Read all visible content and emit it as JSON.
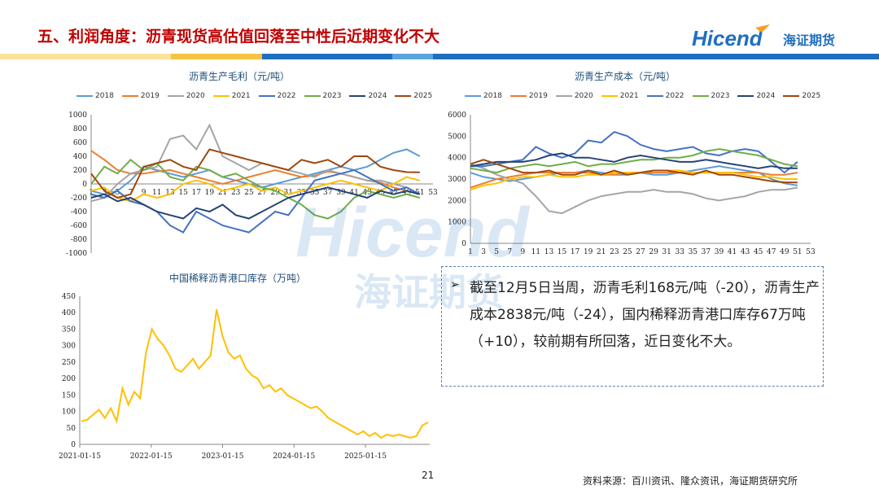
{
  "header": {
    "title": "五、利润角度：沥青现货高估值回落至中性后近期变化不大",
    "logo_text": "Hicend",
    "logo_cn": "海证期货"
  },
  "colors": {
    "title": "#c00000",
    "bar_yellow": "#f6c344",
    "bar_blue": "#1f6fc0",
    "series": {
      "2018": "#5b9bd5",
      "2019": "#ed7d31",
      "2020": "#a5a5a5",
      "2021": "#ffc000",
      "2022": "#4472c4",
      "2023": "#70ad47",
      "2024": "#264478",
      "2025": "#9e480e"
    },
    "inventory": "#ffc000"
  },
  "legend_years": [
    "2018",
    "2019",
    "2020",
    "2021",
    "2022",
    "2023",
    "2024",
    "2025"
  ],
  "note": {
    "bullet": "➢",
    "text": "截至12月5日当周，沥青毛利168元/吨（-20），沥青生产成本2838元/吨（-24），国内稀释沥青港口库存67万吨（+10），较前期有所回落，近日变化不大。"
  },
  "watermark": {
    "latin": "Hicend",
    "cn": "海证期货"
  },
  "footer": {
    "page": "21",
    "source": "资料来源：百川资讯、隆众资讯，海证期货研究所"
  },
  "chart_data": [
    {
      "type": "line",
      "title": "沥青生产毛利（元/吨）",
      "x": [
        1,
        3,
        5,
        7,
        9,
        11,
        13,
        15,
        17,
        19,
        21,
        23,
        25,
        27,
        29,
        31,
        33,
        35,
        37,
        39,
        41,
        43,
        45,
        47,
        49,
        51,
        53
      ],
      "ylim": [
        -1000,
        1000
      ],
      "yticks": [
        1000,
        800,
        600,
        400,
        200,
        0,
        -200,
        -400,
        -600,
        -800,
        -1000
      ],
      "series": [
        {
          "name": "2018",
          "values": [
            -100,
            -150,
            -100,
            50,
            250,
            200,
            150,
            100,
            150,
            200,
            100,
            50,
            0,
            -50,
            0,
            50,
            100,
            150,
            200,
            250,
            200,
            250,
            350,
            450,
            500,
            400,
            null
          ]
        },
        {
          "name": "2019",
          "values": [
            480,
            350,
            200,
            150,
            150,
            180,
            200,
            150,
            100,
            50,
            0,
            50,
            100,
            150,
            200,
            150,
            100,
            120,
            180,
            150,
            100,
            50,
            20,
            -50,
            -100,
            null,
            null
          ]
        },
        {
          "name": "2020",
          "values": [
            -250,
            -200,
            0,
            150,
            200,
            250,
            650,
            700,
            500,
            850,
            400,
            300,
            200,
            300,
            250,
            200,
            150,
            100,
            200,
            150,
            100,
            50,
            50,
            0,
            -50,
            null,
            null
          ]
        },
        {
          "name": "2021",
          "values": [
            -100,
            -50,
            -200,
            -250,
            -150,
            -200,
            -150,
            0,
            50,
            0,
            -100,
            -50,
            0,
            -100,
            -50,
            -150,
            -100,
            -50,
            0,
            50,
            0,
            -50,
            -100,
            0,
            100,
            50,
            null
          ]
        },
        {
          "name": "2022",
          "values": [
            -150,
            -200,
            -100,
            -250,
            -300,
            -400,
            -600,
            -700,
            -400,
            -500,
            -600,
            -650,
            -700,
            -550,
            -400,
            -450,
            -200,
            50,
            100,
            150,
            200,
            100,
            0,
            -100,
            -50,
            -150,
            null
          ]
        },
        {
          "name": "2023",
          "values": [
            0,
            250,
            150,
            350,
            200,
            300,
            100,
            50,
            250,
            200,
            100,
            150,
            50,
            -50,
            -100,
            -200,
            -300,
            -450,
            -500,
            -400,
            -200,
            -100,
            -150,
            -200,
            -150,
            -200,
            null
          ]
        },
        {
          "name": "2024",
          "values": [
            -200,
            -150,
            -250,
            -200,
            -300,
            -400,
            -450,
            -500,
            -350,
            -400,
            -300,
            -450,
            -500,
            -400,
            -300,
            -200,
            -150,
            -100,
            -50,
            -100,
            -150,
            -200,
            -100,
            -150,
            -100,
            -150,
            null
          ]
        },
        {
          "name": "2025",
          "values": [
            150,
            -100,
            -200,
            -150,
            250,
            300,
            350,
            250,
            200,
            500,
            450,
            400,
            350,
            300,
            250,
            200,
            350,
            300,
            350,
            250,
            400,
            400,
            250,
            200,
            170,
            168,
            null
          ]
        }
      ]
    },
    {
      "type": "line",
      "title": "沥青生产成本（元/吨）",
      "x": [
        1,
        3,
        5,
        7,
        9,
        11,
        13,
        15,
        17,
        19,
        21,
        23,
        25,
        27,
        29,
        31,
        33,
        35,
        37,
        39,
        41,
        43,
        45,
        47,
        49,
        51,
        53
      ],
      "ylim": [
        0,
        6000
      ],
      "yticks": [
        6000,
        5000,
        4000,
        3000,
        2000,
        1000,
        0
      ],
      "series": [
        {
          "name": "2018",
          "values": [
            3300,
            3100,
            3000,
            2900,
            3000,
            3100,
            3200,
            3300,
            3300,
            3400,
            3300,
            3200,
            3200,
            3300,
            3200,
            3200,
            3300,
            3400,
            3500,
            3600,
            3500,
            3400,
            3300,
            3000,
            2800,
            2700,
            null
          ]
        },
        {
          "name": "2019",
          "values": [
            2600,
            2800,
            3000,
            3100,
            3200,
            3300,
            3300,
            3300,
            3300,
            3300,
            3200,
            3200,
            3300,
            3300,
            3300,
            3300,
            3300,
            3300,
            3300,
            3300,
            3300,
            3300,
            3300,
            3200,
            3200,
            3300,
            null
          ]
        },
        {
          "name": "2020",
          "values": [
            3700,
            3500,
            3200,
            3000,
            2800,
            2200,
            1500,
            1400,
            1700,
            2000,
            2200,
            2300,
            2400,
            2400,
            2500,
            2400,
            2400,
            2300,
            2100,
            2000,
            2100,
            2200,
            2400,
            2500,
            2500,
            2600,
            null
          ]
        },
        {
          "name": "2021",
          "values": [
            2500,
            2700,
            2800,
            3000,
            3100,
            3100,
            3200,
            3100,
            3100,
            3200,
            3200,
            3300,
            3300,
            3300,
            3400,
            3400,
            3400,
            3300,
            3300,
            3300,
            3300,
            3200,
            3100,
            3100,
            3000,
            3000,
            null
          ]
        },
        {
          "name": "2022",
          "values": [
            3600,
            3600,
            3700,
            3800,
            3900,
            4500,
            4200,
            4000,
            4200,
            4800,
            4700,
            5200,
            5000,
            4600,
            4400,
            4300,
            4400,
            4500,
            4200,
            4100,
            4300,
            4400,
            4300,
            3800,
            3300,
            3800,
            null
          ]
        },
        {
          "name": "2023",
          "values": [
            3500,
            3400,
            3300,
            3500,
            3600,
            3700,
            3600,
            3700,
            3800,
            3600,
            3700,
            3700,
            3800,
            3900,
            3900,
            4000,
            4000,
            4100,
            4300,
            4400,
            4300,
            4200,
            4100,
            3900,
            3700,
            3600,
            null
          ]
        },
        {
          "name": "2024",
          "values": [
            3600,
            3700,
            3800,
            3800,
            3800,
            3900,
            4100,
            4200,
            4000,
            4000,
            3900,
            3800,
            4000,
            4100,
            4000,
            3900,
            3800,
            3800,
            3900,
            3800,
            3700,
            3600,
            3500,
            3600,
            3500,
            3500,
            null
          ]
        },
        {
          "name": "2025",
          "values": [
            3700,
            3900,
            3700,
            3500,
            3300,
            3300,
            3400,
            3200,
            3200,
            3400,
            3200,
            3400,
            3200,
            3300,
            3400,
            3400,
            3300,
            3200,
            3400,
            3200,
            3200,
            3100,
            3000,
            2900,
            2850,
            2838,
            null
          ]
        }
      ],
      "xlabels": [
        "1",
        "3",
        "5",
        "7",
        "9",
        "11",
        "13",
        "15",
        "17",
        "19",
        "21",
        "23",
        "25",
        "27",
        "29",
        "31",
        "33",
        "35",
        "37",
        "39",
        "41",
        "43",
        "45",
        "47",
        "49",
        "51",
        "53"
      ]
    },
    {
      "type": "line",
      "title": "中国稀释沥青港口库存（万吨）",
      "x_labels": [
        "2021-01-15",
        "2022-01-15",
        "2023-01-15",
        "2024-01-15",
        "2025-01-15"
      ],
      "ylim": [
        0,
        450
      ],
      "yticks": [
        450,
        400,
        350,
        300,
        250,
        200,
        150,
        100,
        50,
        0
      ],
      "months": 60,
      "values": [
        70,
        75,
        90,
        105,
        80,
        110,
        70,
        170,
        120,
        160,
        140,
        280,
        350,
        320,
        300,
        270,
        230,
        220,
        240,
        260,
        230,
        250,
        270,
        410,
        330,
        280,
        260,
        270,
        230,
        210,
        200,
        170,
        180,
        160,
        170,
        150,
        140,
        130,
        120,
        110,
        115,
        100,
        80,
        70,
        60,
        50,
        40,
        30,
        40,
        25,
        35,
        20,
        30,
        25,
        30,
        25,
        20,
        25,
        57,
        67
      ],
      "series_name": ""
    }
  ]
}
